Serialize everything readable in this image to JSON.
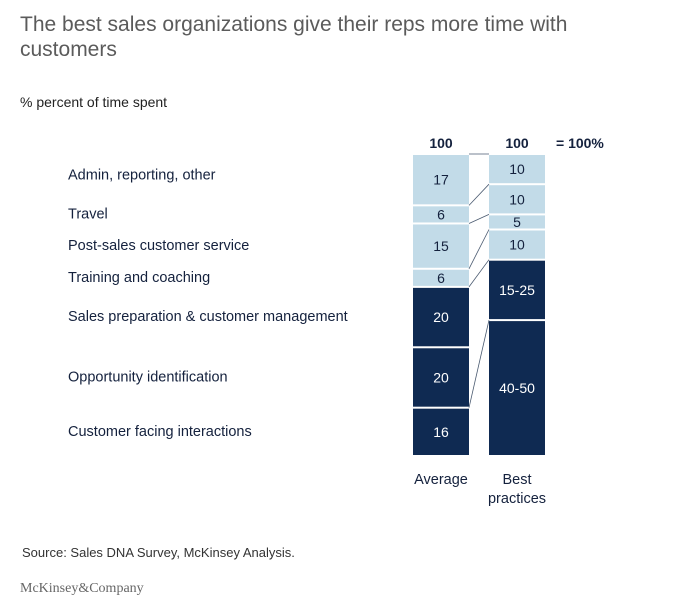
{
  "title": "The best sales organizations give their reps more time with customers",
  "subtitle": "% percent of time spent",
  "source": "Source: Sales DNA Survey, McKinsey Analysis.",
  "logo": "McKinsey&Company",
  "chart_data": {
    "type": "bar",
    "stacked": true,
    "title": "The best sales organizations give their reps more time with customers",
    "ylabel": "% percent of time spent",
    "categories": [
      "Average",
      "Best practices"
    ],
    "totals": [
      "100",
      "100"
    ],
    "total_note": "= 100%",
    "series": [
      {
        "name": "Customer facing interactions",
        "values": [
          16,
          45
        ],
        "labels": [
          "16",
          "40-50"
        ],
        "color": "#0f2a52"
      },
      {
        "name": "Opportunity identification",
        "values": [
          20,
          0
        ],
        "labels": [
          "20",
          ""
        ],
        "color": "#0f2a52"
      },
      {
        "name": "Sales preparation & customer management",
        "values": [
          20,
          20
        ],
        "labels": [
          "20",
          "15-25"
        ],
        "color": "#0f2a52"
      },
      {
        "name": "Training and coaching",
        "values": [
          6,
          10
        ],
        "labels": [
          "6",
          "10"
        ],
        "color": "#c2dbe8"
      },
      {
        "name": "Post-sales customer service",
        "values": [
          15,
          5
        ],
        "labels": [
          "15",
          "5"
        ],
        "color": "#c2dbe8"
      },
      {
        "name": "Travel",
        "values": [
          6,
          10
        ],
        "labels": [
          "6",
          "10"
        ],
        "color": "#c2dbe8"
      },
      {
        "name": "Admin, reporting, other",
        "values": [
          17,
          10
        ],
        "labels": [
          "17",
          "10"
        ],
        "color": "#c2dbe8"
      }
    ],
    "ylim": [
      0,
      100
    ]
  }
}
